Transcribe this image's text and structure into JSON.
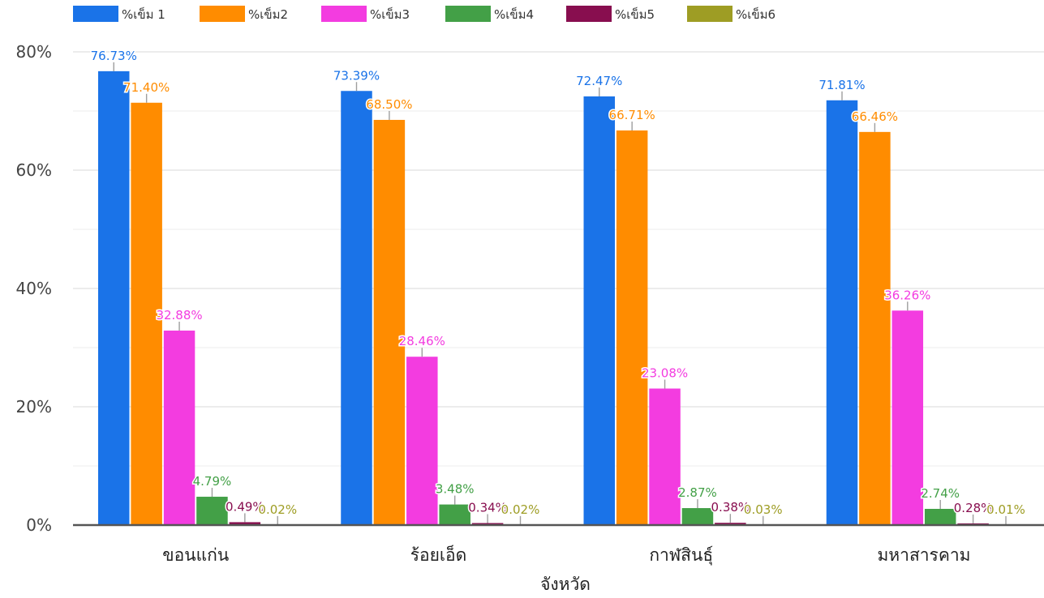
{
  "chart_data": {
    "type": "bar",
    "title": "",
    "xlabel": "จังหวัด",
    "ylabel": "",
    "ylim": [
      0,
      0.8
    ],
    "yticks": [
      "0%",
      "20%",
      "40%",
      "60%",
      "80%"
    ],
    "ytick_values": [
      0,
      0.2,
      0.4,
      0.6,
      0.8
    ],
    "grid": true,
    "legend_position": "top-left",
    "categories": [
      "ขอนแก่น",
      "ร้อยเอ็ด",
      "กาฬสินธุ์",
      "มหาสารคาม"
    ],
    "series": [
      {
        "name": "%เข็ม 1",
        "color": "#1a73e8",
        "values": [
          0.7673,
          0.7339,
          0.7247,
          0.7181
        ],
        "labels": [
          "76.73%",
          "73.39%",
          "72.47%",
          "71.81%"
        ]
      },
      {
        "name": "%เข็ม2",
        "color": "#ff8c00",
        "values": [
          0.714,
          0.685,
          0.6671,
          0.6646
        ],
        "labels": [
          "71.40%",
          "68.50%",
          "66.71%",
          "66.46%"
        ]
      },
      {
        "name": "%เข็ม3",
        "color": "#f33ce0",
        "values": [
          0.3288,
          0.2846,
          0.2308,
          0.3626
        ],
        "labels": [
          "32.88%",
          "28.46%",
          "23.08%",
          "36.26%"
        ]
      },
      {
        "name": "%เข็ม4",
        "color": "#43a047",
        "values": [
          0.0479,
          0.0348,
          0.0287,
          0.0274
        ],
        "labels": [
          "4.79%",
          "3.48%",
          "2.87%",
          "2.74%"
        ]
      },
      {
        "name": "%เข็ม5",
        "color": "#880e4f",
        "values": [
          0.0049,
          0.0034,
          0.0038,
          0.0028
        ],
        "labels": [
          "0.49%",
          "0.34%",
          "0.38%",
          "0.28%"
        ]
      },
      {
        "name": "%เข็ม6",
        "color": "#9e9d24",
        "values": [
          0.0002,
          0.0002,
          0.0003,
          0.0001
        ],
        "labels": [
          "0.02%",
          "0.02%",
          "0.03%",
          "0.01%"
        ]
      }
    ]
  }
}
